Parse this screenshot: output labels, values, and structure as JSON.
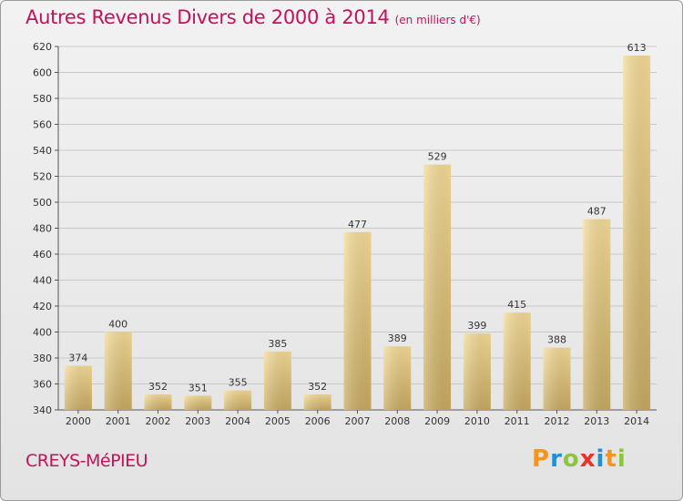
{
  "header": {
    "title": "Autres Revenus Divers de 2000 à 2014",
    "subtitle": "(en milliers d'€)"
  },
  "footer": {
    "commune": "CREYS-MéPIEU",
    "logo_letters": [
      "P",
      "r",
      "o",
      "x",
      "i",
      "t",
      "i"
    ],
    "logo_colors": [
      "#f7941d",
      "#1e90d6",
      "#8bc53f",
      "#e8322b",
      "#1e90d6",
      "#f7941d",
      "#8bc53f"
    ]
  },
  "colors": {
    "title": "#c0135b",
    "bar_light": "#f6dc97",
    "bar_dark": "#c9ab61",
    "grid": "#c8c8c8"
  },
  "chart_data": {
    "type": "bar",
    "title": "Autres Revenus Divers de 2000 à 2014",
    "subtitle": "(en milliers d'€)",
    "xlabel": "",
    "ylabel": "",
    "categories": [
      "2000",
      "2001",
      "2002",
      "2003",
      "2004",
      "2005",
      "2006",
      "2007",
      "2008",
      "2009",
      "2010",
      "2011",
      "2012",
      "2013",
      "2014"
    ],
    "values": [
      374,
      400,
      352,
      351,
      355,
      385,
      352,
      477,
      389,
      529,
      399,
      415,
      388,
      487,
      613
    ],
    "ylim": [
      340,
      620
    ],
    "yticks": [
      340,
      360,
      380,
      400,
      420,
      440,
      460,
      480,
      500,
      520,
      540,
      560,
      580,
      600,
      620
    ],
    "grid": true,
    "data_labels": true
  }
}
